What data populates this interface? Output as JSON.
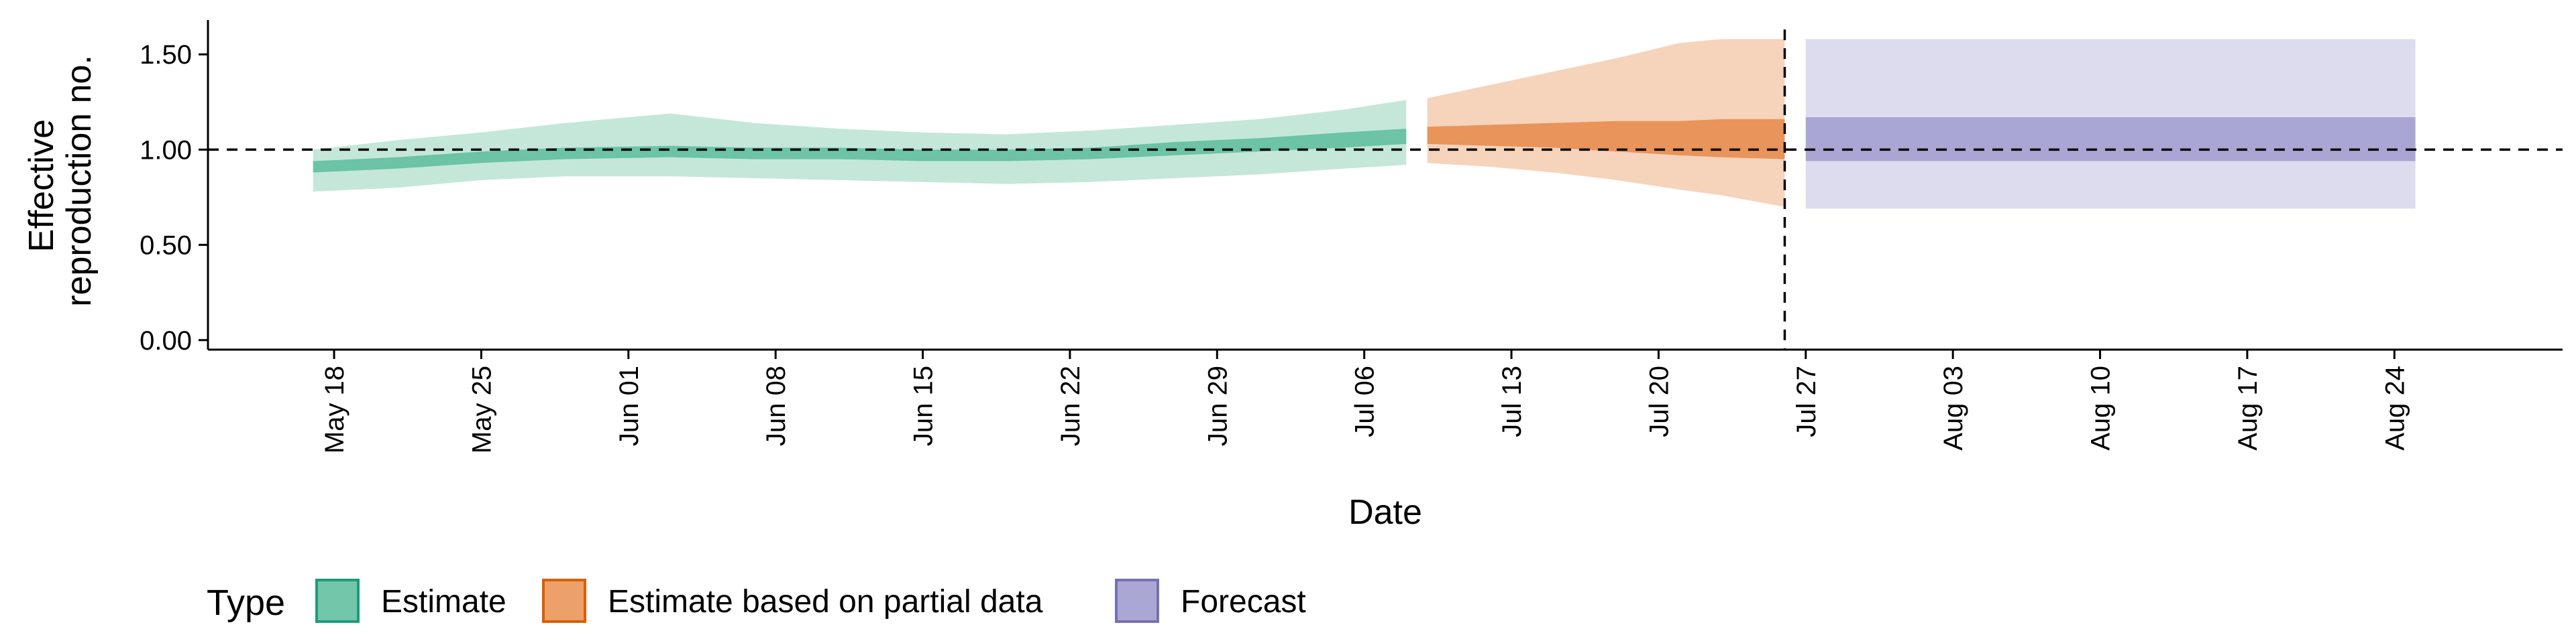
{
  "chart_data": {
    "type": "area",
    "title": "",
    "xlabel": "Date",
    "ylabel_lines": [
      "Effective",
      "reproduction no."
    ],
    "xlim": [
      "2020-05-12",
      "2020-09-01"
    ],
    "ylim": [
      -0.05,
      1.68
    ],
    "y_ticks": [
      {
        "value": 0.0,
        "label": "0.00"
      },
      {
        "value": 0.5,
        "label": "0.50"
      },
      {
        "value": 1.0,
        "label": "1.00"
      },
      {
        "value": 1.5,
        "label": "1.50"
      }
    ],
    "x_ticks": [
      {
        "date": "2020-05-18",
        "label": "May 18"
      },
      {
        "date": "2020-05-25",
        "label": "May 25"
      },
      {
        "date": "2020-06-01",
        "label": "Jun 01"
      },
      {
        "date": "2020-06-08",
        "label": "Jun 08"
      },
      {
        "date": "2020-06-15",
        "label": "Jun 15"
      },
      {
        "date": "2020-06-22",
        "label": "Jun 22"
      },
      {
        "date": "2020-06-29",
        "label": "Jun 29"
      },
      {
        "date": "2020-07-06",
        "label": "Jul 06"
      },
      {
        "date": "2020-07-13",
        "label": "Jul 13"
      },
      {
        "date": "2020-07-20",
        "label": "Jul 20"
      },
      {
        "date": "2020-07-27",
        "label": "Jul 27"
      },
      {
        "date": "2020-08-03",
        "label": "Aug 03"
      },
      {
        "date": "2020-08-10",
        "label": "Aug 10"
      },
      {
        "date": "2020-08-17",
        "label": "Aug 17"
      },
      {
        "date": "2020-08-24",
        "label": "Aug 24"
      }
    ],
    "reference_line": {
      "y": 1.0,
      "style": "dashed"
    },
    "forecast_start_line": {
      "date": "2020-07-26",
      "style": "dashed"
    },
    "legend": {
      "title": "Type",
      "position": "bottom-left",
      "entries": [
        {
          "label": "Estimate",
          "fill": "#73c6a9",
          "stroke": "#1b9e77"
        },
        {
          "label": "Estimate based on partial data",
          "fill": "#eca06a",
          "stroke": "#d95f02"
        },
        {
          "label": "Forecast",
          "fill": "#aba7d4",
          "stroke": "#7570b3"
        }
      ]
    },
    "series": [
      {
        "type_label": "Estimate",
        "outer_color": "#c4e7da",
        "inner_color": "#6cc3a5",
        "points": [
          {
            "date": "2020-05-17",
            "lower_90": 0.78,
            "upper_90": 1.0,
            "lower_50": 0.88,
            "upper_50": 0.94
          },
          {
            "date": "2020-05-21",
            "lower_90": 0.8,
            "upper_90": 1.05,
            "lower_50": 0.9,
            "upper_50": 0.96
          },
          {
            "date": "2020-05-25",
            "lower_90": 0.84,
            "upper_90": 1.09,
            "lower_50": 0.93,
            "upper_50": 0.99
          },
          {
            "date": "2020-05-29",
            "lower_90": 0.86,
            "upper_90": 1.14,
            "lower_50": 0.95,
            "upper_50": 1.01
          },
          {
            "date": "2020-06-03",
            "lower_90": 0.86,
            "upper_90": 1.19,
            "lower_50": 0.96,
            "upper_50": 1.02
          },
          {
            "date": "2020-06-07",
            "lower_90": 0.85,
            "upper_90": 1.14,
            "lower_50": 0.95,
            "upper_50": 1.01
          },
          {
            "date": "2020-06-11",
            "lower_90": 0.84,
            "upper_90": 1.11,
            "lower_50": 0.95,
            "upper_50": 1.01
          },
          {
            "date": "2020-06-15",
            "lower_90": 0.83,
            "upper_90": 1.09,
            "lower_50": 0.94,
            "upper_50": 1.0
          },
          {
            "date": "2020-06-19",
            "lower_90": 0.82,
            "upper_90": 1.08,
            "lower_50": 0.94,
            "upper_50": 1.0
          },
          {
            "date": "2020-06-23",
            "lower_90": 0.83,
            "upper_90": 1.1,
            "lower_50": 0.95,
            "upper_50": 1.01
          },
          {
            "date": "2020-06-27",
            "lower_90": 0.85,
            "upper_90": 1.13,
            "lower_50": 0.97,
            "upper_50": 1.04
          },
          {
            "date": "2020-07-01",
            "lower_90": 0.87,
            "upper_90": 1.16,
            "lower_50": 0.99,
            "upper_50": 1.06
          },
          {
            "date": "2020-07-05",
            "lower_90": 0.9,
            "upper_90": 1.21,
            "lower_50": 1.01,
            "upper_50": 1.09
          },
          {
            "date": "2020-07-08",
            "lower_90": 0.92,
            "upper_90": 1.26,
            "lower_50": 1.03,
            "upper_50": 1.11
          }
        ]
      },
      {
        "type_label": "Estimate based on partial data",
        "outer_color": "#f6d3bb",
        "inner_color": "#e8945a",
        "points": [
          {
            "date": "2020-07-09",
            "lower_90": 0.93,
            "upper_90": 1.27,
            "lower_50": 1.03,
            "upper_50": 1.12
          },
          {
            "date": "2020-07-12",
            "lower_90": 0.91,
            "upper_90": 1.34,
            "lower_50": 1.02,
            "upper_50": 1.13
          },
          {
            "date": "2020-07-15",
            "lower_90": 0.88,
            "upper_90": 1.41,
            "lower_50": 1.01,
            "upper_50": 1.14
          },
          {
            "date": "2020-07-18",
            "lower_90": 0.84,
            "upper_90": 1.48,
            "lower_50": 0.99,
            "upper_50": 1.15
          },
          {
            "date": "2020-07-21",
            "lower_90": 0.79,
            "upper_90": 1.56,
            "lower_50": 0.97,
            "upper_50": 1.15
          },
          {
            "date": "2020-07-23",
            "lower_90": 0.76,
            "upper_90": 1.58,
            "lower_50": 0.96,
            "upper_50": 1.16
          },
          {
            "date": "2020-07-26",
            "lower_90": 0.7,
            "upper_90": 1.58,
            "lower_50": 0.95,
            "upper_50": 1.16
          }
        ]
      },
      {
        "type_label": "Forecast",
        "outer_color": "#dddcee",
        "inner_color": "#aaa6d4",
        "points": [
          {
            "date": "2020-07-27",
            "lower_90": 0.69,
            "upper_90": 1.58,
            "lower_50": 0.94,
            "upper_50": 1.17
          },
          {
            "date": "2020-08-25",
            "lower_90": 0.69,
            "upper_90": 1.58,
            "lower_50": 0.94,
            "upper_50": 1.17
          }
        ]
      }
    ]
  }
}
